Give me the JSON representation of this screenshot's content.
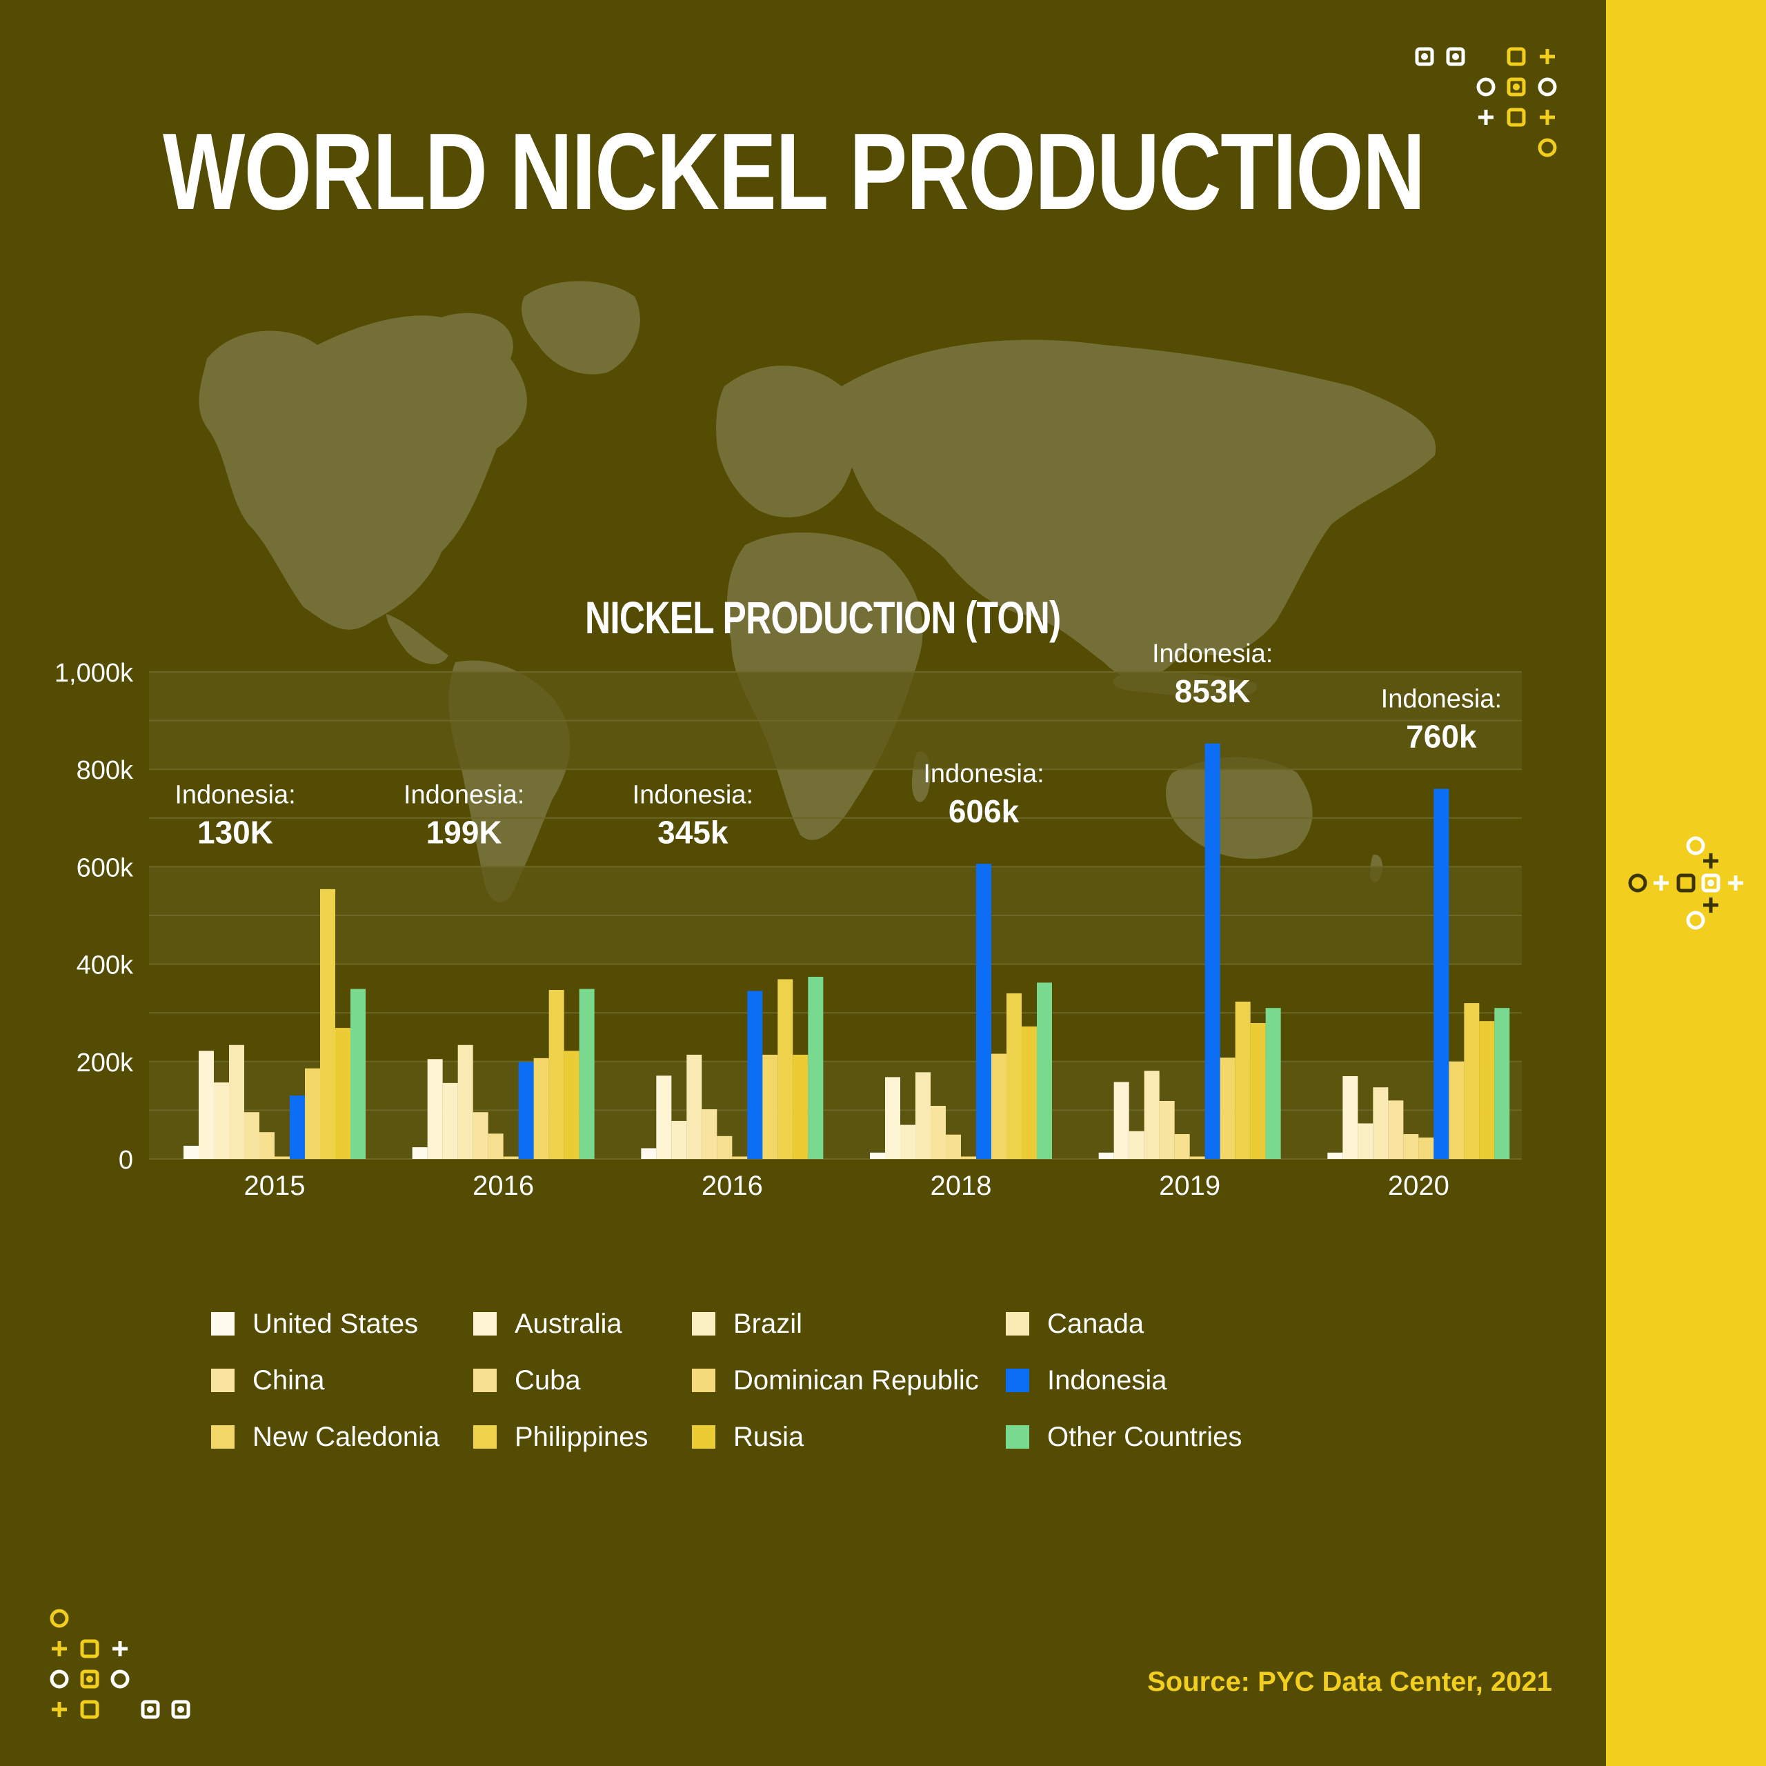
{
  "title": "WORLD NICKEL PRODUCTION",
  "source": "Source: PYC Data Center, 2021",
  "colors": {
    "background": "#534c02",
    "side_strip": "#f2ce1f",
    "map": "#746f37",
    "band": "#5e5816",
    "title_text": "#ffffff",
    "source_text": "#f2ce1f",
    "highlight_series": "#0b6ef5",
    "deco_white": "#ffffff",
    "deco_yellow": "#f2ce1f",
    "deco_dark": "#3b3504"
  },
  "icons": [
    "circle-icon",
    "square-icon",
    "plus-icon"
  ],
  "chart_data": {
    "type": "bar",
    "title": "NICKEL PRODUCTION (TON)",
    "xlabel": "",
    "ylabel": "",
    "ylim": [
      0,
      1000000
    ],
    "yticks": [
      {
        "value": 0,
        "label": "0"
      },
      {
        "value": 200000,
        "label": "200k"
      },
      {
        "value": 400000,
        "label": "400k"
      },
      {
        "value": 600000,
        "label": "600k"
      },
      {
        "value": 800000,
        "label": "800k"
      },
      {
        "value": 1000000,
        "label": "1,000k"
      }
    ],
    "categories": [
      "2015",
      "2016",
      "2016",
      "2018",
      "2019",
      "2020"
    ],
    "legend_position": "bottom",
    "series": [
      {
        "name": "United States",
        "color": "#fffbee",
        "values": [
          27000,
          24000,
          22000,
          13000,
          13000,
          13000
        ]
      },
      {
        "name": "Australia",
        "color": "#fdf4d3",
        "values": [
          222000,
          205000,
          171000,
          168000,
          158000,
          170000
        ]
      },
      {
        "name": "Brazil",
        "color": "#fbefc4",
        "values": [
          157000,
          156000,
          78000,
          70000,
          57000,
          73000
        ]
      },
      {
        "name": "Canada",
        "color": "#f9e9b2",
        "values": [
          234000,
          234000,
          214000,
          178000,
          181000,
          147000
        ]
      },
      {
        "name": "China",
        "color": "#f8e49f",
        "values": [
          96000,
          96000,
          102000,
          109000,
          119000,
          120000
        ]
      },
      {
        "name": "Cuba",
        "color": "#f6df8e",
        "values": [
          55000,
          52000,
          47000,
          50000,
          51000,
          51000
        ]
      },
      {
        "name": "Dominican Republic",
        "color": "#f4da7b",
        "values": [
          5000,
          5000,
          5000,
          5000,
          5000,
          44000
        ]
      },
      {
        "name": "Indonesia",
        "color": "#0b6ef5",
        "values": [
          130000,
          199000,
          345000,
          606000,
          853000,
          760000
        ]
      },
      {
        "name": "New Caledonia",
        "color": "#f2d768",
        "values": [
          186000,
          207000,
          214000,
          216000,
          208000,
          200000
        ]
      },
      {
        "name": "Philippines",
        "color": "#efd24c",
        "values": [
          554000,
          347000,
          369000,
          340000,
          323000,
          320000
        ]
      },
      {
        "name": "Rusia",
        "color": "#eccc35",
        "values": [
          269000,
          222000,
          214000,
          272000,
          279000,
          283000
        ]
      },
      {
        "name": "Other Countries",
        "color": "#79d98f",
        "values": [
          349000,
          349000,
          374000,
          362000,
          310000,
          310000
        ]
      }
    ],
    "annotations": [
      {
        "category_index": 0,
        "label": "Indonesia:",
        "value_label": "130K"
      },
      {
        "category_index": 1,
        "label": "Indonesia:",
        "value_label": "199K"
      },
      {
        "category_index": 2,
        "label": "Indonesia:",
        "value_label": "345k"
      },
      {
        "category_index": 3,
        "label": "Indonesia:",
        "value_label": "606k"
      },
      {
        "category_index": 4,
        "label": "Indonesia:",
        "value_label": "853K"
      },
      {
        "category_index": 5,
        "label": "Indonesia:",
        "value_label": "760k"
      }
    ]
  }
}
